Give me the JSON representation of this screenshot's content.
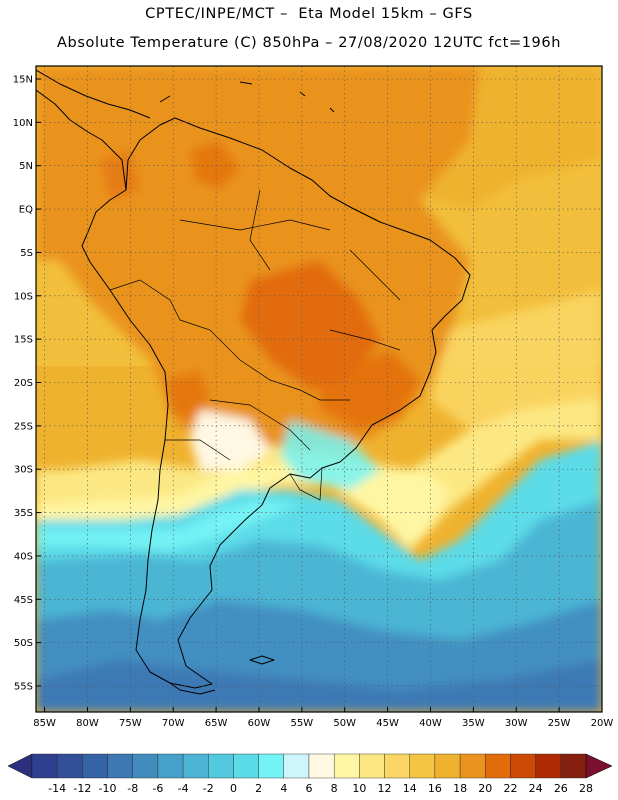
{
  "header": {
    "line1": "CPTEC/INPE/MCT –  Eta Model 15km – GFS",
    "line2": "Absolute Temperature (C) 850hPa – 27/08/2020 12UTC fct=196h"
  },
  "map": {
    "lat_labels": [
      "15N",
      "10N",
      "5N",
      "EQ",
      "5S",
      "10S",
      "15S",
      "20S",
      "25S",
      "30S",
      "35S",
      "40S",
      "45S",
      "50S",
      "55S"
    ],
    "lon_labels": [
      "85W",
      "80W",
      "75W",
      "70W",
      "65W",
      "60W",
      "55W",
      "50W",
      "45W",
      "40W",
      "35W",
      "30W",
      "25W",
      "20W"
    ],
    "extent": {
      "lon": [
        -86,
        -20
      ],
      "lat": [
        -58,
        16.5
      ]
    }
  },
  "colorbar": {
    "labels": [
      "-14",
      "-12",
      "-10",
      "-8",
      "-6",
      "-4",
      "-2",
      "0",
      "2",
      "4",
      "6",
      "8",
      "10",
      "12",
      "14",
      "16",
      "18",
      "20",
      "22",
      "24",
      "26",
      "28"
    ],
    "colors": [
      "#2e3f8f",
      "#324f98",
      "#3564a6",
      "#3d77b4",
      "#428bbf",
      "#47a0c9",
      "#4cb5d4",
      "#52c9df",
      "#5cdbe8",
      "#74f3f5",
      "#cdf5fb",
      "#fff8e3",
      "#fff6a3",
      "#fce883",
      "#fbd664",
      "#f4c443",
      "#efb22e",
      "#ea931e",
      "#e26c0a",
      "#cd4a06",
      "#ae2b05",
      "#852010"
    ],
    "low_end_color": "#2b2f7d",
    "high_end_color": "#7a0f2e"
  }
}
